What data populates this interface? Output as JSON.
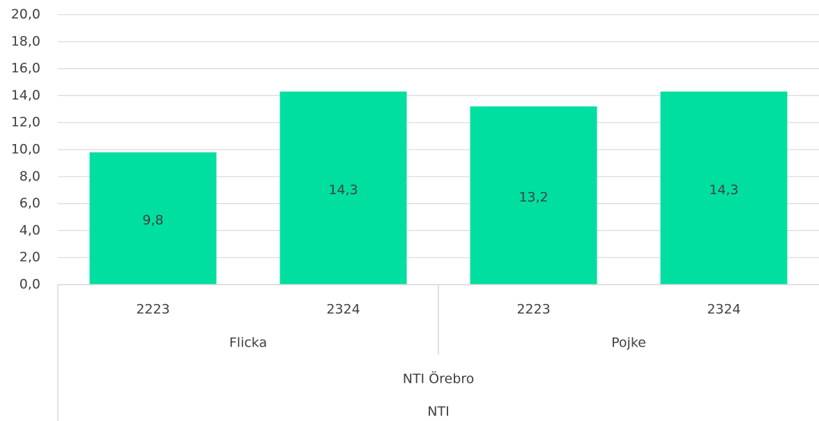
{
  "chart_data": {
    "type": "bar",
    "categories": [
      "2223",
      "2324",
      "2223",
      "2324"
    ],
    "category_levels": [
      [
        "Flicka",
        "Pojke"
      ],
      [
        "NTI Örebro"
      ],
      [
        "NTI"
      ]
    ],
    "values": [
      9.8,
      14.3,
      13.2,
      14.3
    ],
    "value_labels": [
      "9,8",
      "14,3",
      "13,2",
      "14,3"
    ],
    "color": "#00df9f",
    "ylim": [
      0,
      20
    ],
    "yticks": [
      {
        "value": 0,
        "label": "0,0"
      },
      {
        "value": 2,
        "label": "2,0"
      },
      {
        "value": 4,
        "label": "4,0"
      },
      {
        "value": 6,
        "label": "6,0"
      },
      {
        "value": 8,
        "label": "8,0"
      },
      {
        "value": 10,
        "label": "10,0"
      },
      {
        "value": 12,
        "label": "12,0"
      },
      {
        "value": 14,
        "label": "14,0"
      },
      {
        "value": 16,
        "label": "16,0"
      },
      {
        "value": 18,
        "label": "18,0"
      },
      {
        "value": 20,
        "label": "20,0"
      }
    ],
    "grid": true
  }
}
